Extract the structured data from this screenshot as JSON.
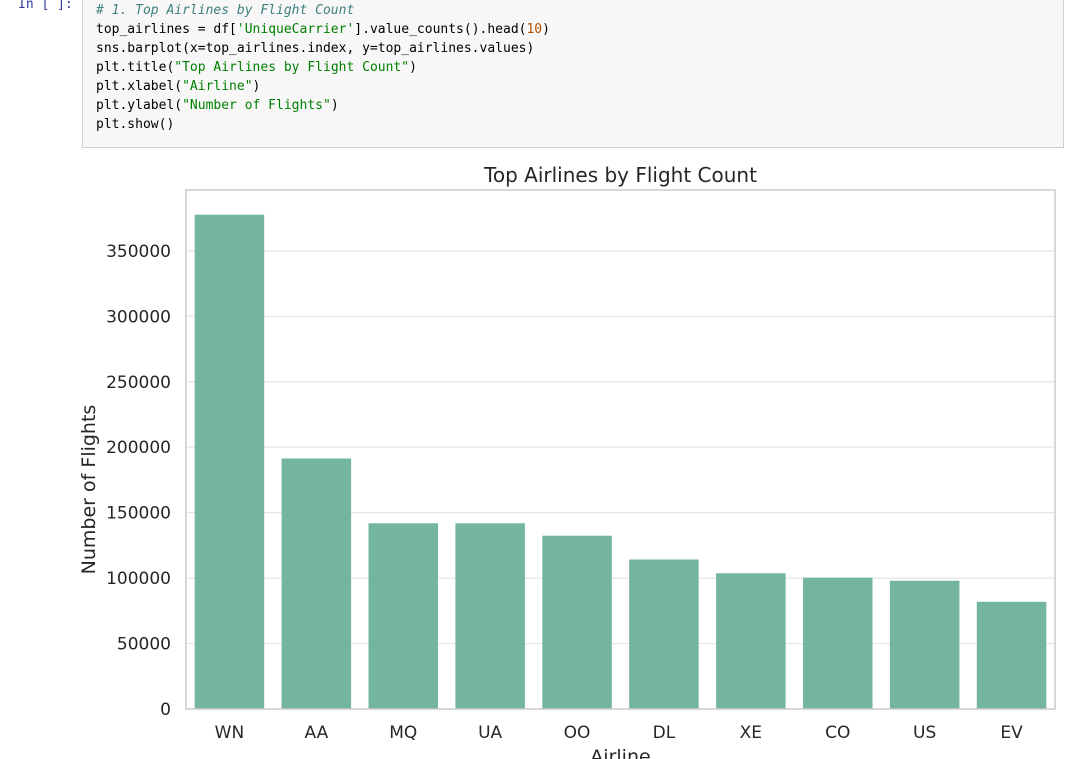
{
  "cell": {
    "prompt": "In [ ]:",
    "code": {
      "line1": "# 1. Top Airlines by Flight Count",
      "line2": {
        "a": "top_airlines = df[",
        "b": "'UniqueCarrier'",
        "c": "].value_counts().head(",
        "d": "10",
        "e": ")"
      },
      "line3": "sns.barplot(x=top_airlines.index, y=top_airlines.values)",
      "line4": {
        "a": "plt.title(",
        "b": "\"Top Airlines by Flight Count\"",
        "c": ")"
      },
      "line5": {
        "a": "plt.xlabel(",
        "b": "\"Airline\"",
        "c": ")"
      },
      "line6": {
        "a": "plt.ylabel(",
        "b": "\"Number of Flights\"",
        "c": ")"
      },
      "line7": "plt.show()"
    }
  },
  "colors": {
    "bar": "#74b5a0",
    "grid": "#e5e5e5",
    "spine": "#cccccc"
  },
  "chart_data": {
    "type": "bar",
    "title": "Top Airlines by Flight Count",
    "xlabel": "Airline",
    "ylabel": "Number of Flights",
    "categories": [
      "WN",
      "AA",
      "MQ",
      "UA",
      "OO",
      "DL",
      "XE",
      "CO",
      "US",
      "EV"
    ],
    "values": [
      377600,
      191400,
      141900,
      141900,
      132400,
      114200,
      103700,
      100300,
      98000,
      81900
    ],
    "yticks": [
      0,
      50000,
      100000,
      150000,
      200000,
      250000,
      300000,
      350000
    ],
    "ytick_labels": [
      "0",
      "50000",
      "100000",
      "150000",
      "200000",
      "250000",
      "300000",
      "350000"
    ],
    "ylim": [
      0,
      396500
    ],
    "grid": true
  }
}
